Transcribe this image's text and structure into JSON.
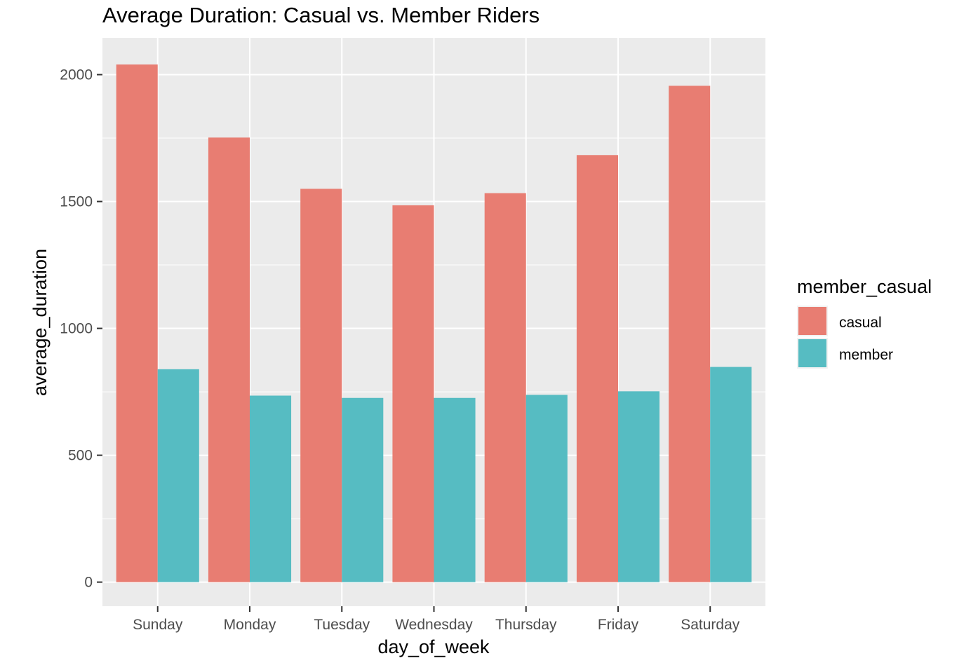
{
  "chart_data": {
    "type": "bar",
    "title": "Average Duration: Casual vs. Member Riders",
    "xlabel": "day_of_week",
    "ylabel": "average_duration",
    "categories": [
      "Sunday",
      "Monday",
      "Tuesday",
      "Wednesday",
      "Thursday",
      "Friday",
      "Saturday"
    ],
    "series": [
      {
        "name": "casual",
        "color": "#E87D72",
        "values": [
          2040,
          1752,
          1550,
          1485,
          1533,
          1683,
          1956
        ]
      },
      {
        "name": "member",
        "color": "#56BCC2",
        "values": [
          839,
          735,
          726,
          726,
          738,
          752,
          848
        ]
      }
    ],
    "ylim": [
      -95,
      2145
    ],
    "yticks": [
      0,
      500,
      1000,
      1500,
      2000
    ],
    "ytick_labels": [
      "0",
      "500",
      "1000",
      "1500",
      "2000"
    ],
    "legend": {
      "title": "member_casual",
      "position": "right"
    },
    "grid": true,
    "panel_background": "#EBEBEB"
  }
}
